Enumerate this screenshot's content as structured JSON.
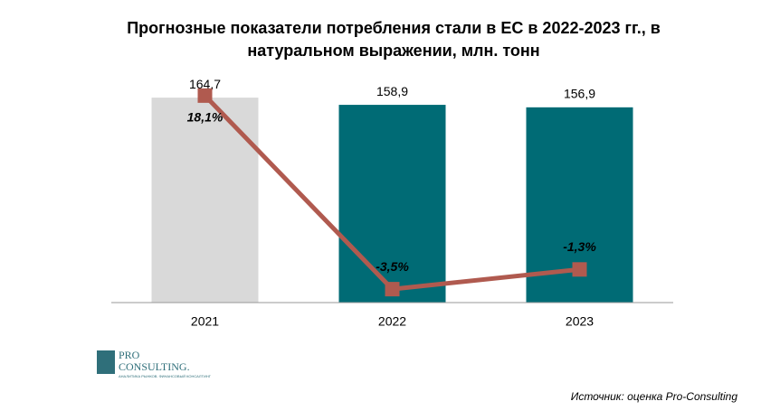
{
  "chart_data": {
    "type": "bar",
    "title": [
      "Прогнозные показатели потребления стали в ЕС в 2022-2023 гг., в",
      "натуральном выражении, млн. тонн"
    ],
    "categories": [
      "2021",
      "2022",
      "2023"
    ],
    "series": [
      {
        "type": "bar",
        "colors": [
          "#d9d9d9",
          "#006b75",
          "#006b75"
        ],
        "values": [
          164.7,
          158.9,
          156.9
        ],
        "value_labels": [
          "164,7",
          "158,9",
          "156,9"
        ]
      },
      {
        "type": "line",
        "axis": "y2",
        "color": "#b05a4f",
        "values": [
          18.1,
          -3.5,
          -1.3
        ],
        "value_labels": [
          "18,1%",
          "-3,5%",
          "-1,3%"
        ]
      }
    ],
    "ylim": [
      0,
      180
    ],
    "y2lim": [
      -5,
      20
    ]
  },
  "logo": {
    "line1": "PRO",
    "line2": "CONSULTING.",
    "tagline": "АНАЛИТИКА РЫНКОВ. ФИНАНСОВЫЙ КОНСАЛТИНГ"
  },
  "source": "Источник: оценка Pro-Consulting"
}
